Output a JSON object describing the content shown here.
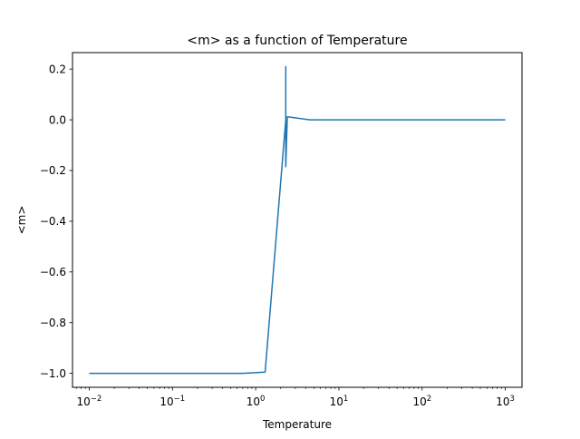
{
  "chart_data": {
    "type": "line",
    "title": "<m> as a function of Temperature",
    "xlabel": "Temperature",
    "ylabel": "<m>",
    "xscale": "log",
    "xlim": [
      0.0063,
      1585
    ],
    "ylim": [
      -1.055,
      0.265
    ],
    "grid": false,
    "color": "#1f77b4",
    "xticks": [
      {
        "value": 0.01,
        "base": "10",
        "exp": "−2"
      },
      {
        "value": 0.1,
        "base": "10",
        "exp": "−1"
      },
      {
        "value": 1,
        "base": "10",
        "exp": "0"
      },
      {
        "value": 10,
        "base": "10",
        "exp": "1"
      },
      {
        "value": 100,
        "base": "10",
        "exp": "2"
      },
      {
        "value": 1000,
        "base": "10",
        "exp": "3"
      }
    ],
    "yticks": [
      {
        "value": 0.2,
        "label": "0.2"
      },
      {
        "value": 0.0,
        "label": "0.0"
      },
      {
        "value": -0.2,
        "label": "−0.2"
      },
      {
        "value": -0.4,
        "label": "−0.4"
      },
      {
        "value": -0.6,
        "label": "−0.6"
      },
      {
        "value": -0.8,
        "label": "−0.8"
      },
      {
        "value": -1.0,
        "label": "−1.0"
      }
    ],
    "series": [
      {
        "x": [
          0.01,
          0.05,
          0.2,
          0.7,
          1.3,
          2.3,
          2.3,
          2.3,
          2.4,
          4.5,
          10,
          100,
          1000
        ],
        "y": [
          -1.0,
          -1.0,
          -1.0,
          -1.0,
          -0.995,
          0.0,
          0.21,
          -0.185,
          0.012,
          0.0,
          0.0,
          0.0,
          0.0
        ]
      }
    ]
  }
}
